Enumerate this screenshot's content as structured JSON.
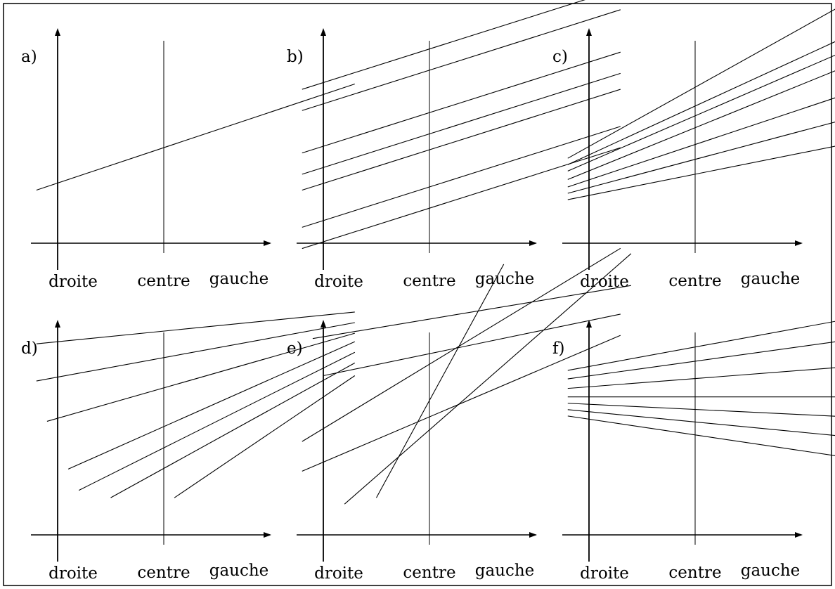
{
  "chart_data": [
    {
      "type": "line",
      "panel_label": "a)",
      "xlabel": "",
      "ylabel": "",
      "x_ticks": [
        "droite",
        "centre",
        "gauche"
      ],
      "xlim": [
        -1.5,
        2.2
      ],
      "ylim": [
        -1.3,
        2.0
      ],
      "series": [
        {
          "x": [
            -1.2,
            1.8
          ],
          "y": [
            0.5,
            1.5
          ]
        }
      ]
    },
    {
      "type": "line",
      "panel_label": "b)",
      "xlabel": "",
      "ylabel": "",
      "x_ticks": [
        "droite",
        "centre",
        "gauche"
      ],
      "xlim": [
        -1.5,
        2.2
      ],
      "ylim": [
        -1.3,
        2.0
      ],
      "series": [
        {
          "x": [
            -1.2,
            1.8
          ],
          "y": [
            1.45,
            2.4
          ]
        },
        {
          "x": [
            -1.2,
            1.8
          ],
          "y": [
            1.25,
            2.2
          ]
        },
        {
          "x": [
            -1.2,
            1.8
          ],
          "y": [
            0.85,
            1.8
          ]
        },
        {
          "x": [
            -1.2,
            1.8
          ],
          "y": [
            0.65,
            1.6
          ]
        },
        {
          "x": [
            -1.2,
            1.8
          ],
          "y": [
            0.5,
            1.45
          ]
        },
        {
          "x": [
            -1.2,
            1.8
          ],
          "y": [
            0.15,
            1.1
          ]
        },
        {
          "x": [
            -1.2,
            1.8
          ],
          "y": [
            -0.05,
            0.9
          ]
        }
      ]
    },
    {
      "type": "line",
      "panel_label": "c)",
      "xlabel": "",
      "ylabel": "",
      "x_ticks": [
        "droite",
        "centre",
        "gauche"
      ],
      "xlim": [
        -1.5,
        2.2
      ],
      "ylim": [
        -1.3,
        2.0
      ],
      "series": [
        {
          "x": [
            -1.2,
            1.4
          ],
          "y": [
            0.8,
            2.25
          ]
        },
        {
          "x": [
            -1.2,
            1.8
          ],
          "y": [
            0.74,
            2.12
          ]
        },
        {
          "x": [
            -1.2,
            1.8
          ],
          "y": [
            0.68,
            1.98
          ]
        },
        {
          "x": [
            -1.2,
            1.8
          ],
          "y": [
            0.6,
            1.82
          ]
        },
        {
          "x": [
            -1.2,
            1.8
          ],
          "y": [
            0.53,
            1.53
          ]
        },
        {
          "x": [
            -1.2,
            1.8
          ],
          "y": [
            0.47,
            1.27
          ]
        },
        {
          "x": [
            -1.2,
            1.8
          ],
          "y": [
            0.41,
            1.01
          ]
        }
      ]
    },
    {
      "type": "line",
      "panel_label": "d)",
      "xlabel": "",
      "ylabel": "",
      "x_ticks": [
        "droite",
        "centre",
        "gauche"
      ],
      "xlim": [
        -1.5,
        2.2
      ],
      "ylim": [
        -1.3,
        2.0
      ],
      "series": [
        {
          "x": [
            -1.2,
            1.8
          ],
          "y": [
            1.8,
            2.1
          ]
        },
        {
          "x": [
            -1.2,
            1.8
          ],
          "y": [
            1.45,
            2.0
          ]
        },
        {
          "x": [
            -1.1,
            1.8
          ],
          "y": [
            1.07,
            1.9
          ]
        },
        {
          "x": [
            -0.9,
            1.8
          ],
          "y": [
            0.62,
            1.82
          ]
        },
        {
          "x": [
            -0.8,
            1.8
          ],
          "y": [
            0.42,
            1.72
          ]
        },
        {
          "x": [
            -0.5,
            1.8
          ],
          "y": [
            0.35,
            1.62
          ]
        },
        {
          "x": [
            0.1,
            1.8
          ],
          "y": [
            0.35,
            1.5
          ]
        }
      ]
    },
    {
      "type": "line",
      "panel_label": "e)",
      "xlabel": "",
      "ylabel": "",
      "x_ticks": [
        "droite",
        "centre",
        "gauche"
      ],
      "xlim": [
        -1.5,
        2.2
      ],
      "ylim": [
        -1.3,
        2.0
      ],
      "series": [
        {
          "x": [
            -1.1,
            1.9
          ],
          "y": [
            1.85,
            2.35
          ]
        },
        {
          "x": [
            -1.0,
            1.8
          ],
          "y": [
            1.5,
            2.08
          ]
        },
        {
          "x": [
            -1.2,
            1.8
          ],
          "y": [
            0.6,
            1.88
          ]
        },
        {
          "x": [
            -1.2,
            1.8
          ],
          "y": [
            0.88,
            2.7
          ]
        },
        {
          "x": [
            -0.8,
            1.9
          ],
          "y": [
            0.29,
            2.65
          ]
        },
        {
          "x": [
            -0.5,
            0.7
          ],
          "y": [
            0.35,
            2.55
          ]
        }
      ]
    },
    {
      "type": "line",
      "panel_label": "f)",
      "xlabel": "",
      "ylabel": "",
      "x_ticks": [
        "droite",
        "centre",
        "gauche"
      ],
      "xlim": [
        -1.5,
        2.2
      ],
      "ylim": [
        -1.3,
        2.0
      ],
      "series": [
        {
          "x": [
            -1.2,
            1.8
          ],
          "y": [
            1.55,
            2.1
          ]
        },
        {
          "x": [
            -1.2,
            1.9
          ],
          "y": [
            1.47,
            1.9
          ]
        },
        {
          "x": [
            -1.2,
            1.9
          ],
          "y": [
            1.38,
            1.62
          ]
        },
        {
          "x": [
            -1.2,
            1.9
          ],
          "y": [
            1.3,
            1.3
          ]
        },
        {
          "x": [
            -1.2,
            1.9
          ],
          "y": [
            1.24,
            1.09
          ]
        },
        {
          "x": [
            -1.2,
            1.9
          ],
          "y": [
            1.18,
            0.88
          ]
        },
        {
          "x": [
            -1.2,
            1.9
          ],
          "y": [
            1.12,
            0.66
          ]
        }
      ]
    }
  ]
}
